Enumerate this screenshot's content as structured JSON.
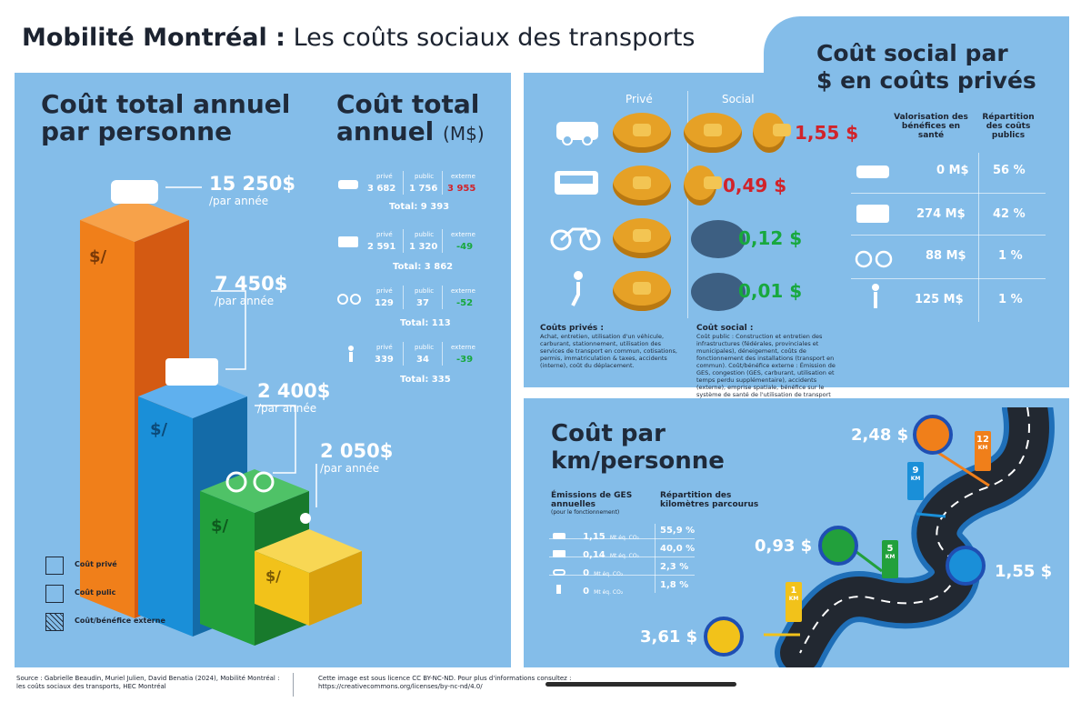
{
  "title": {
    "bold": "Mobilité Montréal :",
    "rest": "Les coûts sociaux des transports"
  },
  "left": {
    "heading": [
      "Coût total annuel",
      "par personne"
    ],
    "bars": [
      {
        "amount": "15 250$",
        "per": "/par année",
        "color": "#f07f1a"
      },
      {
        "amount": "7 450$",
        "per": "/par année",
        "color": "#1a8fd8"
      },
      {
        "amount": "2 400$",
        "per": "/par année",
        "color": "#22a03c"
      },
      {
        "amount": "2 050$",
        "per": "/par année",
        "color": "#f2c21a"
      }
    ],
    "bar_symbol": "$/",
    "legend": [
      "Coût privé",
      "Coût pulic",
      "Coût/bénéfice externe"
    ]
  },
  "annual": {
    "heading": [
      "Coût total",
      "annuel"
    ],
    "unit": "(M$)",
    "rows": [
      {
        "labels": [
          "privé",
          "public",
          "externe"
        ],
        "values": [
          "3 682",
          "1 756",
          "3 955"
        ],
        "total": "Total: 9 393"
      },
      {
        "labels": [
          "privé",
          "public",
          "externe"
        ],
        "values": [
          "2 591",
          "1 320",
          "-49"
        ],
        "total": "Total: 3 862"
      },
      {
        "labels": [
          "privé",
          "public",
          "externe"
        ],
        "values": [
          "129",
          "37",
          "-52"
        ],
        "total": "Total: 113"
      },
      {
        "labels": [
          "privé",
          "public",
          "externe"
        ],
        "values": [
          "339",
          "34",
          "-39"
        ],
        "total": "Total: 335"
      }
    ]
  },
  "social": {
    "heading": [
      "Coût social par",
      "$ en coûts privés"
    ],
    "col_prive": "Privé",
    "col_social": "Social",
    "rows": [
      {
        "value": "1,55 $",
        "color": "#d1232a"
      },
      {
        "value": "0,49 $",
        "color": "#d1232a"
      },
      {
        "value": "0,12 $",
        "color": "#18a83e"
      },
      {
        "value": "0,01 $",
        "color": "#18a83e"
      }
    ],
    "col_val_header": "Valorisation des bénéfices en santé",
    "col_rep_header": "Répartition des coûts publics",
    "table": [
      {
        "val": "0 M$",
        "rep": "56 %"
      },
      {
        "val": "274 M$",
        "rep": "42 %"
      },
      {
        "val": "88 M$",
        "rep": "1 %"
      },
      {
        "val": "125 M$",
        "rep": "1 %"
      }
    ],
    "cout_prives_title": "Coûts privés :",
    "cout_prives_text": "Achat, entretien, utilisation d'un véhicule, carburant, stationnement, utilisation des services de transport en commun, cotisations, permis, immatriculation & taxes, accidents (interne), coût du déplacement.",
    "cout_social_title": "Coût social :",
    "cout_social_text": "Coût public : Construction et entretien des infrastructures (fédérales, provinciales et municipales), déneigement, coûts de fonctionnement des installations (transport en commun). Coût/bénéfice externe : Émission de GES, congestion (GES, carburant, utilisation et temps perdu supplémentaire), accidents (externe), emprise spatiale, bénéfice sur le système de santé de l'utilisation de transport actif."
  },
  "km": {
    "heading": [
      "Coût par",
      "km/personne"
    ],
    "ges_header": "Émissions de GES annuelles",
    "ges_sub": "(pour le fonctionnement)",
    "rep_header": "Répartition des kilomètres parcourus",
    "rows": [
      {
        "ges": "1,15",
        "unit": "Mt éq. CO₂",
        "rep": "55,9 %"
      },
      {
        "ges": "0,14",
        "unit": "Mt éq. CO₂",
        "rep": "40,0 %"
      },
      {
        "ges": "0",
        "unit": "Mt éq. CO₂",
        "rep": "2,3 %"
      },
      {
        "ges": "0",
        "unit": "Mt éq. CO₂",
        "rep": "1,8 %"
      }
    ],
    "cost_car": "2,48 $",
    "cost_bike": "0,93 $",
    "cost_bus": "1,55 $",
    "cost_walk": "3,61 $",
    "markers": [
      {
        "num": "12",
        "unit": "KM"
      },
      {
        "num": "9",
        "unit": "KM"
      },
      {
        "num": "5",
        "unit": "KM"
      },
      {
        "num": "1",
        "unit": "KM"
      }
    ]
  },
  "footer": {
    "source": "Source : Gabrielle Beaudin, Muriel Julien, David Benatia (2024), Mobilité Montréal : les coûts sociaux des transports, HEC Montréal",
    "license": "Cette image est sous licence CC BY-NC-ND. Pour plus d'informations consultez : https://creativecommons.org/licenses/by-nc-nd/4.0/"
  }
}
